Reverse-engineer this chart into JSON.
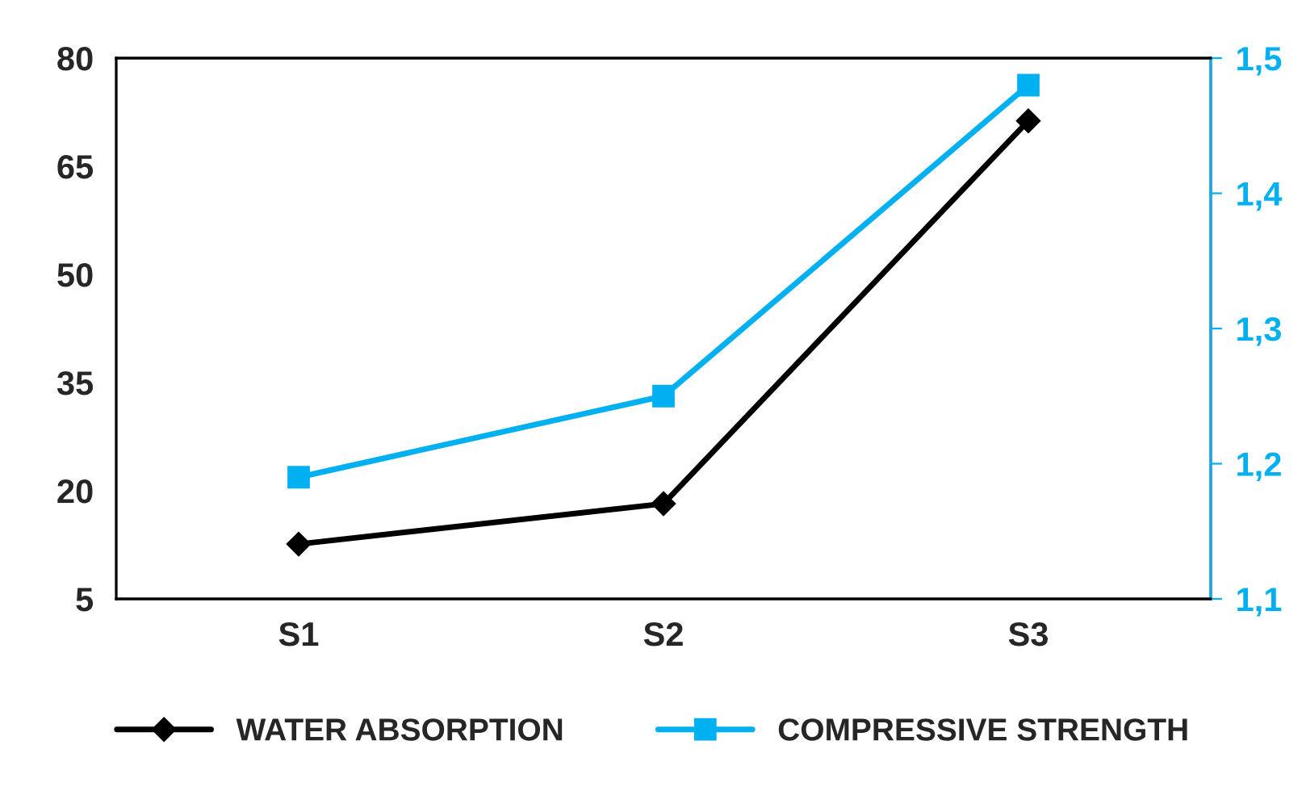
{
  "chart_data": {
    "type": "line",
    "categories": [
      "S1",
      "S2",
      "S3"
    ],
    "series": [
      {
        "name": "WATER ABSORPTION",
        "color": "#000000",
        "values": [
          12.6,
          18.2,
          71.3
        ],
        "marker": "diamond"
      },
      {
        "name": "COMPRESSIVE STRENGTH",
        "color": "#00b0f0",
        "values": [
          1.19,
          1.25,
          1.48
        ],
        "marker": "square",
        "axis": "y2"
      }
    ],
    "ylim": [
      5,
      80
    ],
    "yticks": [
      5,
      20,
      35,
      50,
      65,
      80
    ],
    "y2lim": [
      1.1,
      1.5
    ],
    "y2ticks": [
      {
        "value": 1.1,
        "label": "1,1"
      },
      {
        "value": 1.2,
        "label": "1,2"
      },
      {
        "value": 1.3,
        "label": "1,3"
      },
      {
        "value": 1.4,
        "label": "1,4"
      },
      {
        "value": 1.5,
        "label": "1,5"
      }
    ],
    "grid": false,
    "legend": "bottom",
    "line_style": "solid"
  }
}
